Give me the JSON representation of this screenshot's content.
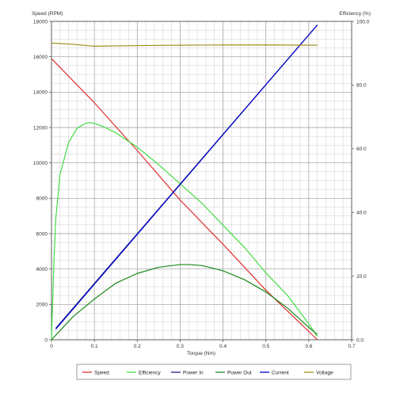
{
  "chart_data": {
    "type": "line",
    "xlabel": "Torque (Nm)",
    "ylabel_left": "Speed (RPM)",
    "ylabel_right": "Efficiency (%)",
    "xlim": [
      0,
      0.7
    ],
    "ylim_left": [
      0,
      18000
    ],
    "ylim_right": [
      0,
      100
    ],
    "x_ticks": [
      "0",
      "0.1",
      "0.2",
      "0.3",
      "0.4",
      "0.5",
      "0.6",
      "0.7"
    ],
    "y_left_ticks": [
      "0",
      "2000",
      "4000",
      "6000",
      "8000",
      "10000",
      "12000",
      "14000",
      "16000",
      "18000"
    ],
    "y_right_ticks": [
      "0.0",
      "20.0",
      "40.0",
      "60.0",
      "80.0",
      "100.0"
    ],
    "grid": true,
    "legend_position": "bottom",
    "series": [
      {
        "name": "Speed",
        "color": "#e03030",
        "axis": "left",
        "x": [
          0,
          0.1,
          0.2,
          0.3,
          0.4,
          0.5,
          0.62
        ],
        "y": [
          15900,
          13400,
          10700,
          7900,
          5400,
          2800,
          0
        ]
      },
      {
        "name": "Efficiency",
        "color": "#44dd44",
        "axis": "right",
        "x": [
          0,
          0.005,
          0.01,
          0.02,
          0.04,
          0.06,
          0.08,
          0.09,
          0.1,
          0.12,
          0.15,
          0.2,
          0.25,
          0.3,
          0.35,
          0.4,
          0.45,
          0.5,
          0.55,
          0.6,
          0.62
        ],
        "y": [
          0,
          22,
          38,
          52,
          62,
          66.5,
          68,
          68.2,
          68,
          67,
          65,
          60.5,
          55,
          49,
          43,
          36,
          29,
          21,
          14,
          5,
          1
        ]
      },
      {
        "name": "Power In",
        "color": "#202090",
        "axis": "left",
        "x": [
          0.01,
          0.62
        ],
        "y": [
          650,
          17800
        ]
      },
      {
        "name": "Power Out",
        "color": "#1a8a1a",
        "axis": "left",
        "x": [
          0,
          0.05,
          0.1,
          0.15,
          0.2,
          0.25,
          0.3,
          0.32,
          0.35,
          0.4,
          0.45,
          0.5,
          0.55,
          0.6,
          0.62
        ],
        "y": [
          0,
          1300,
          2300,
          3200,
          3750,
          4100,
          4250,
          4250,
          4200,
          3900,
          3400,
          2700,
          1800,
          700,
          300
        ]
      },
      {
        "name": "Current",
        "color": "#0000cc",
        "axis": "left",
        "x": [
          0.01,
          0.62
        ],
        "y": [
          600,
          17800
        ]
      },
      {
        "name": "Voltage",
        "color": "#a09020",
        "axis": "right",
        "x": [
          0,
          0.05,
          0.1,
          0.2,
          0.3,
          0.4,
          0.5,
          0.62
        ],
        "y": [
          93.2,
          92.8,
          92.2,
          92.4,
          92.5,
          92.6,
          92.6,
          92.5
        ]
      }
    ]
  }
}
